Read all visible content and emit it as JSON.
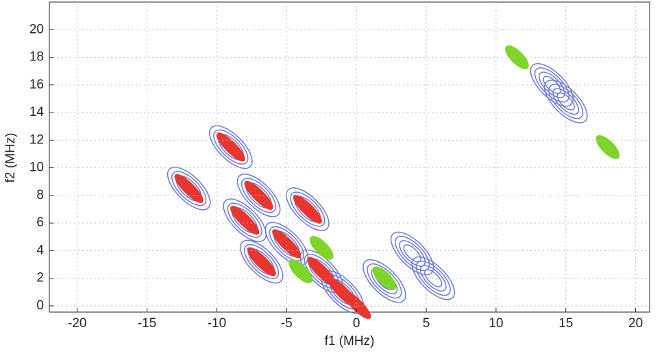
{
  "chart_data": {
    "type": "contour",
    "xlabel": "f1 (MHz)",
    "ylabel": "f2 (MHz)",
    "xlim": [
      -22,
      21
    ],
    "ylim": [
      -0.45,
      22
    ],
    "xticks": [
      -20,
      -15,
      -10,
      -5,
      0,
      5,
      10,
      15,
      20
    ],
    "yticks": [
      0,
      2,
      4,
      6,
      8,
      10,
      12,
      14,
      16,
      18,
      20
    ],
    "grid": true,
    "series": [
      {
        "name": "blue",
        "color": "#6a78d8",
        "x": [
          -9,
          -12,
          -8,
          -7,
          -6.8,
          -5,
          -3.5,
          -2.5,
          -1,
          2,
          4,
          5.5,
          15,
          14
        ],
        "y": [
          11.5,
          8.5,
          6.2,
          8,
          3.2,
          4.5,
          7,
          2.5,
          1,
          1.8,
          3.8,
          2,
          14.8,
          16
        ]
      },
      {
        "name": "red",
        "color": "#e8362e",
        "x": [
          -9,
          -12,
          -8,
          -7,
          -6.8,
          -5,
          -3.5,
          -2.5,
          -1,
          0
        ],
        "y": [
          11.5,
          8.5,
          6.2,
          8,
          3.2,
          4.5,
          7,
          2.5,
          1,
          0.1
        ]
      },
      {
        "name": "green",
        "color": "#7fd42a",
        "x": [
          11.5,
          18,
          -2.5,
          -4,
          2
        ],
        "y": [
          18,
          11.5,
          4.2,
          2.5,
          2
        ]
      }
    ]
  }
}
